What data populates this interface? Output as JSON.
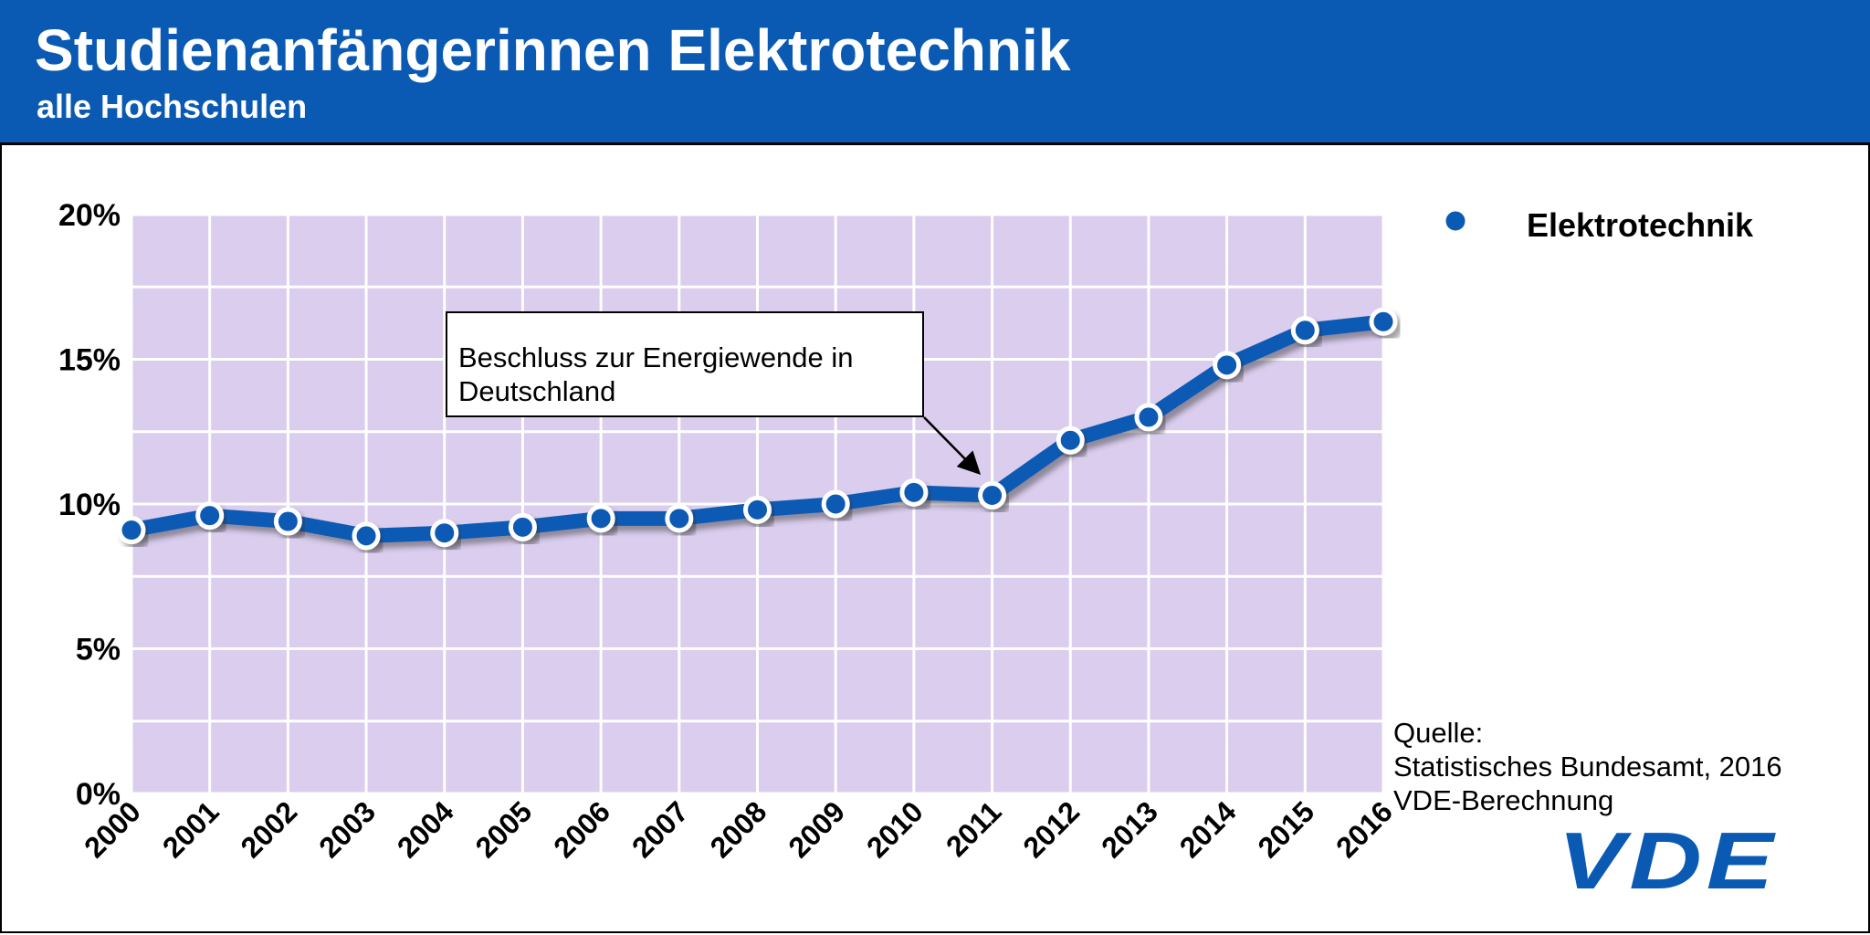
{
  "header": {
    "title": "Studienanfängerinnen Elektrotechnik",
    "subtitle": "alle Hochschulen"
  },
  "chart_data": {
    "type": "line",
    "categories": [
      "2000",
      "2001",
      "2002",
      "2003",
      "2004",
      "2005",
      "2006",
      "2007",
      "2008",
      "2009",
      "2010",
      "2011",
      "2012",
      "2013",
      "2014",
      "2015",
      "2016"
    ],
    "series": [
      {
        "name": "Elektrotechnik",
        "values": [
          9.1,
          9.6,
          9.4,
          8.9,
          9.0,
          9.2,
          9.5,
          9.5,
          9.8,
          10.0,
          10.4,
          10.3,
          12.2,
          13.0,
          14.8,
          16.0,
          16.3
        ],
        "color": "#0a5ab4"
      }
    ],
    "ylim": [
      0,
      20
    ],
    "yticks": [
      "0%",
      "5%",
      "10%",
      "15%",
      "20%"
    ],
    "grid": true,
    "plot_background": "#dacdee",
    "legend": "top-right",
    "annotation": {
      "text": "Beschluss zur Energiewende in Deutschland",
      "points_to": "2011"
    }
  },
  "source": {
    "lines": [
      "Quelle:",
      "Statistisches Bundesamt, 2016",
      "VDE-Berechnung"
    ]
  },
  "logo": "VDE"
}
